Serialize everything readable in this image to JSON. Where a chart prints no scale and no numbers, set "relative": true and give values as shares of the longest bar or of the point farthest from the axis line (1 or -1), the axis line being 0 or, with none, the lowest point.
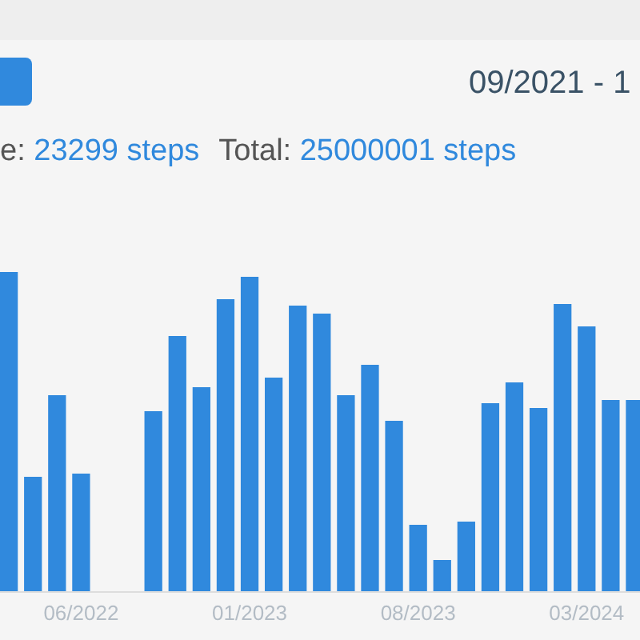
{
  "chart_data": {
    "type": "bar",
    "title": "09/2021 - 1",
    "annotations": [
      "e: 23299 steps",
      "Total: 25000001 steps"
    ],
    "categories": [
      null,
      null,
      null,
      "06/2022",
      null,
      null,
      null,
      null,
      null,
      null,
      "01/2023",
      null,
      null,
      null,
      null,
      null,
      null,
      "08/2023",
      null,
      null,
      null,
      null,
      null,
      null,
      "03/2024",
      null,
      null
    ],
    "values": [
      1,
      0.36,
      0.615,
      0.37,
      0,
      0,
      0.565,
      0.8,
      0.64,
      0.915,
      0.985,
      0.67,
      0.895,
      0.87,
      0.615,
      0.71,
      0.535,
      0.21,
      0.1,
      0.22,
      0.59,
      0.655,
      0.575,
      0.9,
      0.83,
      0.6,
      0.6
    ],
    "color": "#3089dd",
    "relative": true
  }
}
